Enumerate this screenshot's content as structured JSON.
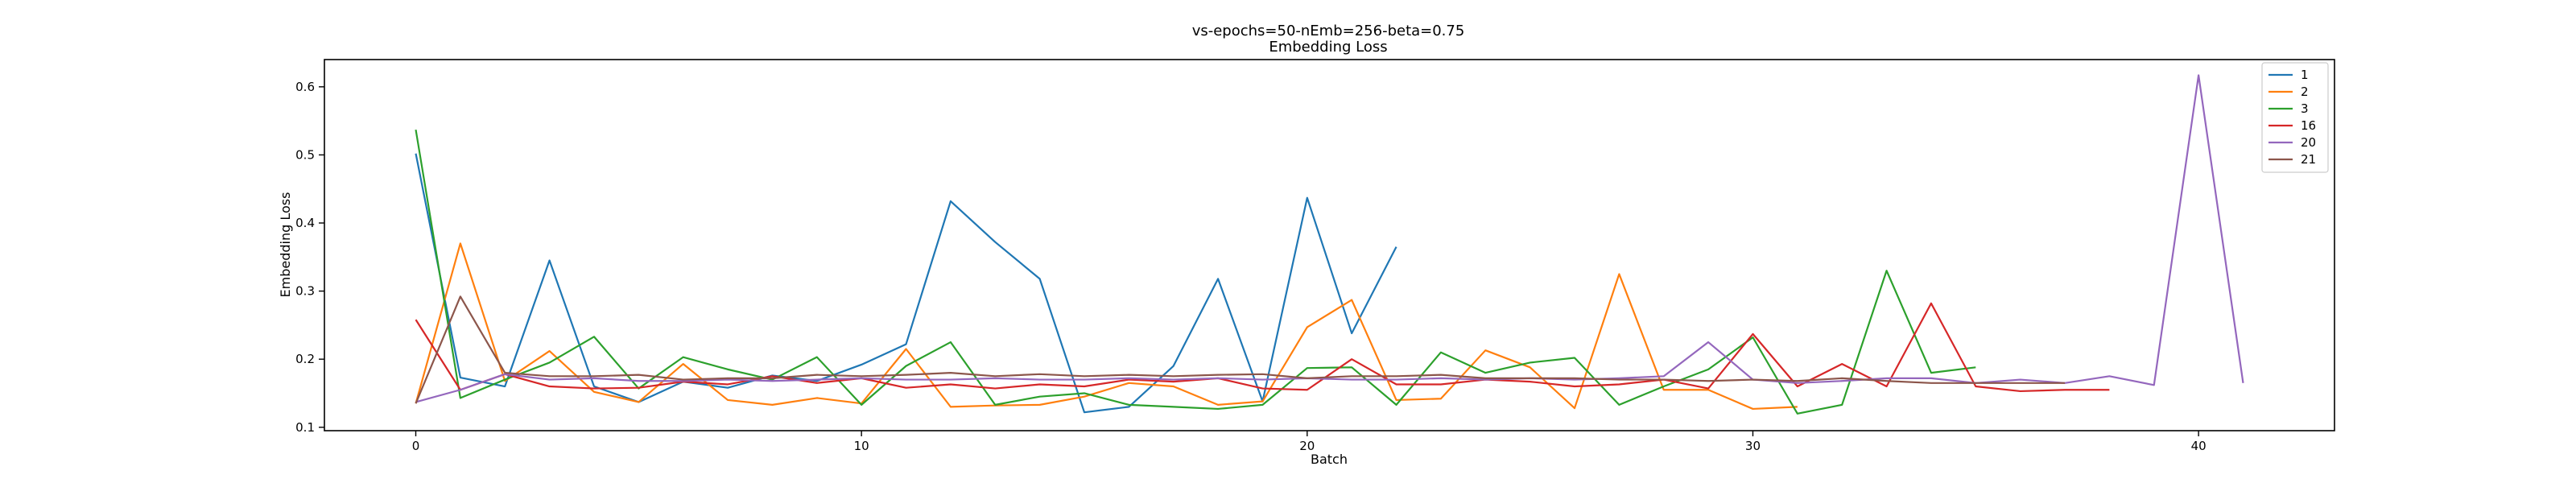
{
  "chart_data": {
    "type": "line",
    "title": "vs-epochs=50-nEmb=256-beta=0.75",
    "subtitle": "Embedding Loss",
    "xlabel": "Batch",
    "ylabel": "Embedding Loss",
    "xlim": [
      -2.05,
      43.05
    ],
    "ylim": [
      0.095,
      0.64
    ],
    "xticks": [
      0,
      10,
      20,
      30,
      40
    ],
    "yticks": [
      0.1,
      0.2,
      0.3,
      0.4,
      0.5,
      0.6
    ],
    "grid": false,
    "legend_position": "top-right",
    "series": [
      {
        "name": "1",
        "color": "#1f77b4",
        "values": [
          0.502,
          0.173,
          0.16,
          0.345,
          0.16,
          0.137,
          0.167,
          0.158,
          0.176,
          0.168,
          0.192,
          0.222,
          0.432,
          0.372,
          0.318,
          0.122,
          0.13,
          0.19,
          0.318,
          0.138,
          0.437,
          0.238,
          0.365
        ]
      },
      {
        "name": "2",
        "color": "#ff7f0e",
        "values": [
          0.135,
          0.37,
          0.168,
          0.212,
          0.152,
          0.137,
          0.193,
          0.14,
          0.133,
          0.143,
          0.135,
          0.215,
          0.13,
          0.132,
          0.133,
          0.145,
          0.165,
          0.16,
          0.133,
          0.138,
          0.247,
          0.287,
          0.14,
          0.142,
          0.213,
          0.188,
          0.128,
          0.325,
          0.155,
          0.155,
          0.127,
          0.13
        ]
      },
      {
        "name": "3",
        "color": "#2ca02c",
        "values": [
          0.537,
          0.143,
          0.17,
          0.195,
          0.233,
          0.157,
          0.203,
          0.185,
          0.17,
          0.203,
          0.133,
          0.19,
          0.225,
          0.133,
          0.145,
          0.15,
          0.133,
          0.13,
          0.127,
          0.133,
          0.187,
          0.188,
          0.133,
          0.21,
          0.18,
          0.195,
          0.202,
          0.133,
          0.16,
          0.185,
          0.232,
          0.12,
          0.133,
          0.33,
          0.18,
          0.188
        ]
      },
      {
        "name": "16",
        "color": "#d62728",
        "values": [
          0.258,
          0.155,
          0.178,
          0.16,
          0.157,
          0.158,
          0.167,
          0.163,
          0.175,
          0.165,
          0.172,
          0.158,
          0.163,
          0.157,
          0.163,
          0.16,
          0.17,
          0.167,
          0.172,
          0.157,
          0.155,
          0.2,
          0.163,
          0.163,
          0.17,
          0.167,
          0.16,
          0.163,
          0.17,
          0.157,
          0.237,
          0.16,
          0.193,
          0.16,
          0.282,
          0.16,
          0.153,
          0.155,
          0.155
        ]
      },
      {
        "name": "20",
        "color": "#9467bd",
        "values": [
          0.137,
          0.155,
          0.178,
          0.17,
          0.172,
          0.168,
          0.168,
          0.17,
          0.168,
          0.17,
          0.172,
          0.17,
          0.17,
          0.172,
          0.17,
          0.17,
          0.172,
          0.17,
          0.172,
          0.17,
          0.172,
          0.17,
          0.17,
          0.172,
          0.17,
          0.172,
          0.17,
          0.172,
          0.175,
          0.225,
          0.17,
          0.165,
          0.168,
          0.172,
          0.172,
          0.165,
          0.17,
          0.165,
          0.175,
          0.162,
          0.617,
          0.165
        ]
      },
      {
        "name": "21",
        "color": "#8c564b",
        "values": [
          0.135,
          0.292,
          0.18,
          0.175,
          0.175,
          0.177,
          0.17,
          0.172,
          0.172,
          0.177,
          0.175,
          0.177,
          0.18,
          0.175,
          0.178,
          0.175,
          0.177,
          0.175,
          0.177,
          0.178,
          0.172,
          0.175,
          0.175,
          0.177,
          0.172,
          0.172,
          0.172,
          0.17,
          0.17,
          0.168,
          0.17,
          0.168,
          0.172,
          0.168,
          0.165,
          0.165,
          0.165,
          0.165
        ]
      }
    ]
  }
}
